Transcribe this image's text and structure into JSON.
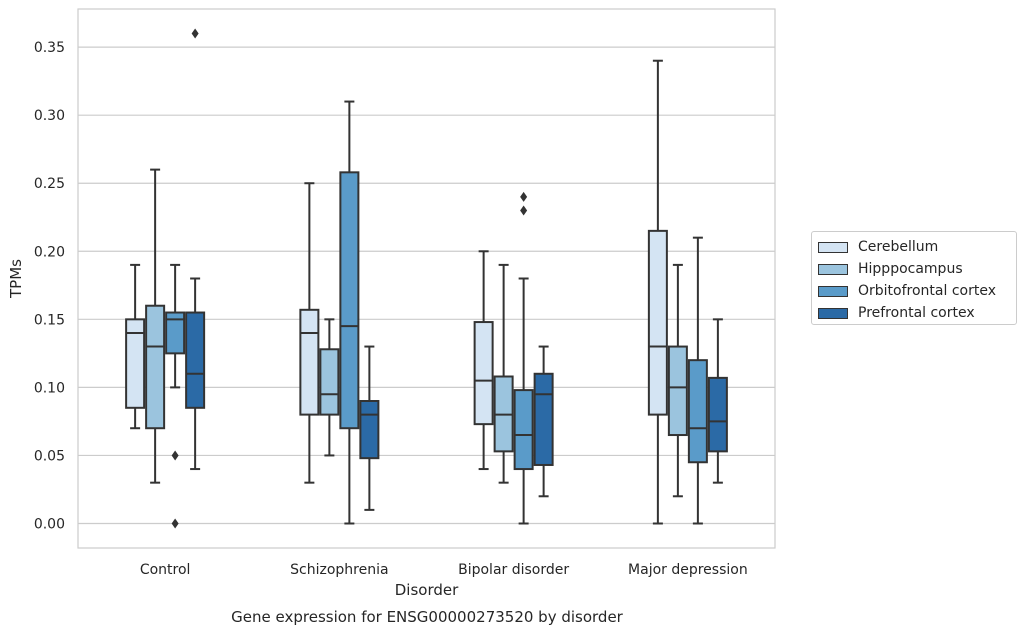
{
  "chart_data": {
    "type": "box",
    "caption": "Gene expression for ENSG00000273520 by disorder",
    "xlabel": "Disorder",
    "ylabel": "TPMs",
    "ylim": [
      -0.018,
      0.378
    ],
    "yticks": [
      "0.00",
      "0.05",
      "0.10",
      "0.15",
      "0.20",
      "0.25",
      "0.30",
      "0.35"
    ],
    "grid": "horizontal",
    "legend_position": "right",
    "categories": [
      "Control",
      "Schizophrenia",
      "Bipolar disorder",
      "Major depression"
    ],
    "series": [
      {
        "name": "Cerebellum",
        "color": "#d4e4f3",
        "boxes": [
          {
            "whislo": 0.07,
            "q1": 0.085,
            "med": 0.14,
            "q3": 0.15,
            "whishi": 0.19,
            "fliers": []
          },
          {
            "whislo": 0.03,
            "q1": 0.08,
            "med": 0.14,
            "q3": 0.157,
            "whishi": 0.25,
            "fliers": []
          },
          {
            "whislo": 0.04,
            "q1": 0.073,
            "med": 0.105,
            "q3": 0.148,
            "whishi": 0.2,
            "fliers": []
          },
          {
            "whislo": 0.0,
            "q1": 0.08,
            "med": 0.13,
            "q3": 0.215,
            "whishi": 0.34,
            "fliers": []
          }
        ]
      },
      {
        "name": "Hipppocampus",
        "color": "#9bc4de",
        "boxes": [
          {
            "whislo": 0.03,
            "q1": 0.07,
            "med": 0.13,
            "q3": 0.16,
            "whishi": 0.26,
            "fliers": []
          },
          {
            "whislo": 0.05,
            "q1": 0.08,
            "med": 0.095,
            "q3": 0.128,
            "whishi": 0.15,
            "fliers": []
          },
          {
            "whislo": 0.03,
            "q1": 0.053,
            "med": 0.08,
            "q3": 0.108,
            "whishi": 0.19,
            "fliers": []
          },
          {
            "whislo": 0.02,
            "q1": 0.065,
            "med": 0.1,
            "q3": 0.13,
            "whishi": 0.19,
            "fliers": []
          }
        ]
      },
      {
        "name": "Orbitofrontal cortex",
        "color": "#5a9bc9",
        "boxes": [
          {
            "whislo": 0.1,
            "q1": 0.125,
            "med": 0.15,
            "q3": 0.155,
            "whishi": 0.19,
            "fliers": [
              0.05,
              0.0
            ]
          },
          {
            "whislo": 0.0,
            "q1": 0.07,
            "med": 0.145,
            "q3": 0.258,
            "whishi": 0.31,
            "fliers": []
          },
          {
            "whislo": 0.0,
            "q1": 0.04,
            "med": 0.065,
            "q3": 0.098,
            "whishi": 0.18,
            "fliers": [
              0.24,
              0.23
            ]
          },
          {
            "whislo": 0.0,
            "q1": 0.045,
            "med": 0.07,
            "q3": 0.12,
            "whishi": 0.21,
            "fliers": []
          }
        ]
      },
      {
        "name": "Prefrontal cortex",
        "color": "#2b6aa6",
        "boxes": [
          {
            "whislo": 0.04,
            "q1": 0.085,
            "med": 0.11,
            "q3": 0.155,
            "whishi": 0.18,
            "fliers": [
              0.36
            ]
          },
          {
            "whislo": 0.01,
            "q1": 0.048,
            "med": 0.08,
            "q3": 0.09,
            "whishi": 0.13,
            "fliers": []
          },
          {
            "whislo": 0.02,
            "q1": 0.043,
            "med": 0.095,
            "q3": 0.11,
            "whishi": 0.13,
            "fliers": []
          },
          {
            "whislo": 0.03,
            "q1": 0.053,
            "med": 0.075,
            "q3": 0.107,
            "whishi": 0.15,
            "fliers": []
          }
        ]
      }
    ]
  }
}
